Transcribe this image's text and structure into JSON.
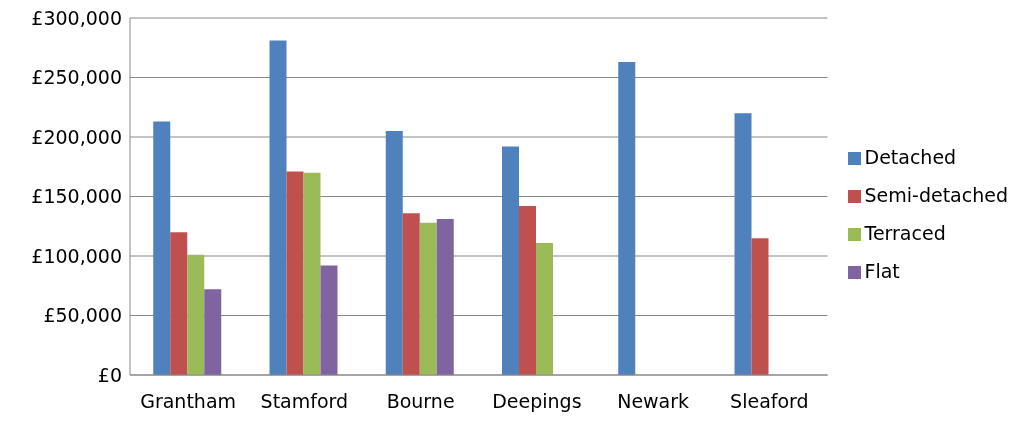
{
  "chart_data": {
    "type": "bar",
    "categories": [
      "Grantham",
      "Stamford",
      "Bourne",
      "Deepings",
      "Newark",
      "Sleaford"
    ],
    "series": [
      {
        "name": "Detached",
        "color": "#4f81bd",
        "values": [
          213000,
          281000,
          205000,
          192000,
          263000,
          220000
        ]
      },
      {
        "name": "Semi-detached",
        "color": "#c0504d",
        "values": [
          120000,
          171000,
          136000,
          142000,
          null,
          115000
        ]
      },
      {
        "name": "Terraced",
        "color": "#9bbb59",
        "values": [
          101000,
          170000,
          128000,
          111000,
          null,
          null
        ]
      },
      {
        "name": "Flat",
        "color": "#8064a2",
        "values": [
          72000,
          92000,
          131000,
          null,
          null,
          null
        ]
      }
    ],
    "ylim": [
      0,
      300000
    ],
    "yticks": [
      {
        "value": 0,
        "label": "£0"
      },
      {
        "value": 50000,
        "label": "£50,000"
      },
      {
        "value": 100000,
        "label": "£100,000"
      },
      {
        "value": 150000,
        "label": "£150,000"
      },
      {
        "value": 200000,
        "label": "£200,000"
      },
      {
        "value": 250000,
        "label": "£250,000"
      },
      {
        "value": 300000,
        "label": "£300,000"
      }
    ],
    "grid": "y",
    "legend": "right"
  }
}
